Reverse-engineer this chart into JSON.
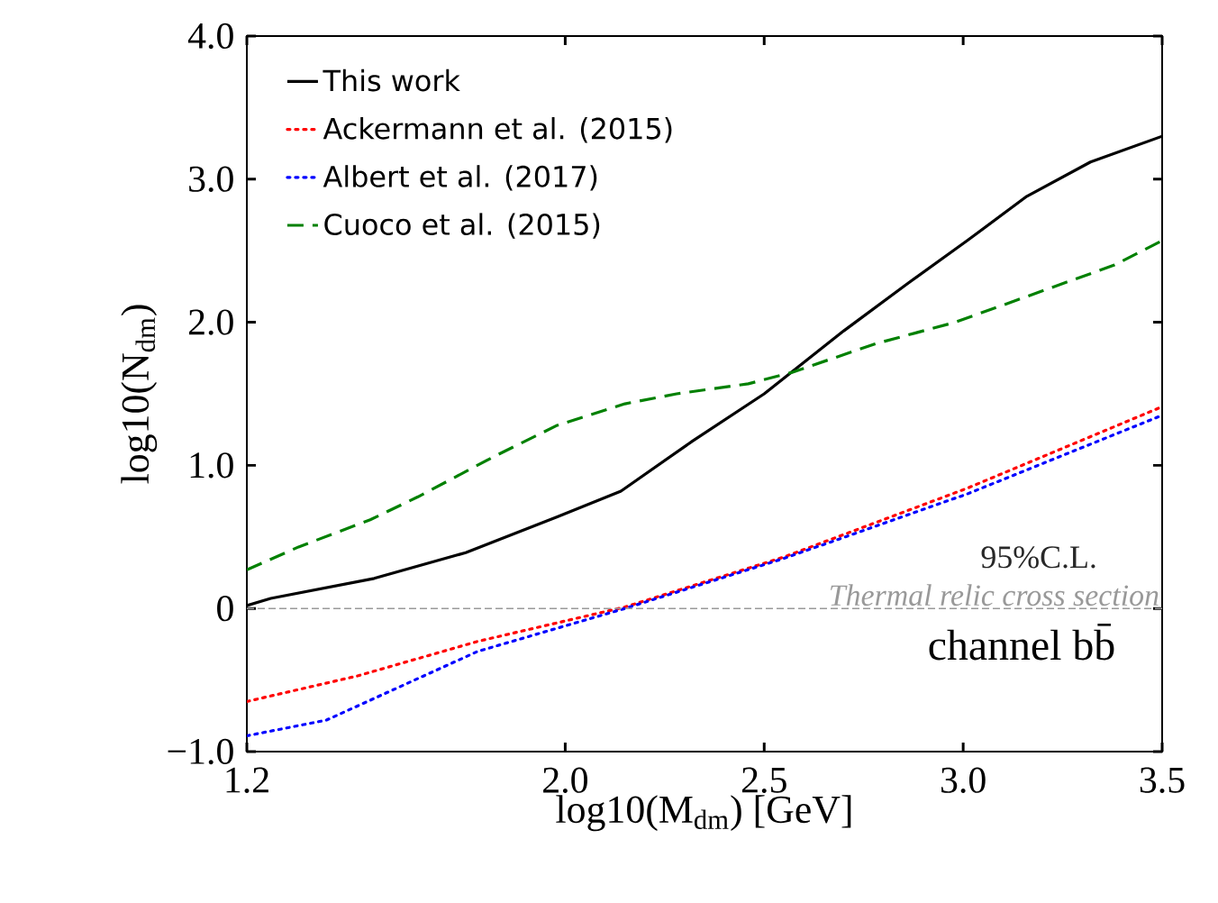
{
  "chart_data": {
    "type": "line",
    "xlabel": "log10(M$_{dm}$) [GeV]",
    "ylabel": "log10(N$_{dm}$)",
    "xlim": [
      1.2,
      3.5
    ],
    "ylim": [
      -1.0,
      4.0
    ],
    "xticks": [
      1.2,
      {
        "value": 2,
        "label": "2.0"
      },
      2.5,
      {
        "value": 3,
        "label": "3.0"
      },
      3.5
    ],
    "yticks": [
      {
        "value": -1,
        "label": "−1.0"
      },
      0,
      {
        "value": 1,
        "label": "1.0"
      },
      {
        "value": 2,
        "label": "2.0"
      },
      {
        "value": 3,
        "label": "3.0"
      },
      {
        "value": 4,
        "label": "4.0"
      }
    ],
    "legend": "top left",
    "grid": false,
    "marker": "none",
    "series": [
      {
        "name": "This work",
        "color": "#000000",
        "line_style": "solid",
        "x": [
          1.2,
          1.26,
          1.52,
          1.75,
          1.98,
          2.14,
          2.32,
          2.5,
          2.7,
          2.86,
          3.01,
          3.16,
          3.32,
          3.5
        ],
        "values": [
          0.02,
          0.07,
          0.21,
          0.39,
          0.64,
          0.82,
          1.17,
          1.5,
          1.94,
          2.27,
          2.57,
          2.88,
          3.12,
          3.3
        ]
      },
      {
        "name": "Ackermann et al. (2015)",
        "color": "#ff0000",
        "line_style": "dotted",
        "x": [
          1.2,
          1.48,
          1.78,
          2.15,
          2.55,
          3.01,
          3.5
        ],
        "values": [
          -0.65,
          -0.47,
          -0.23,
          0.01,
          0.36,
          0.84,
          1.41
        ]
      },
      {
        "name": "Albert et al. (2017)",
        "color": "#0000ff",
        "line_style": "dotted",
        "x": [
          1.2,
          1.4,
          1.78,
          2.15,
          2.55,
          3.01,
          3.5
        ],
        "values": [
          -0.89,
          -0.78,
          -0.3,
          0.0,
          0.35,
          0.8,
          1.35
        ]
      },
      {
        "name": "Cuoco et al. (2015)",
        "color": "#008000",
        "line_style": "dashed",
        "x": [
          1.2,
          1.33,
          1.51,
          1.63,
          1.82,
          1.98,
          2.15,
          2.28,
          2.46,
          2.57,
          2.78,
          2.98,
          3.16,
          3.38,
          3.5
        ],
        "values": [
          0.27,
          0.43,
          0.62,
          0.78,
          1.06,
          1.28,
          1.43,
          1.5,
          1.57,
          1.65,
          1.85,
          2.0,
          2.18,
          2.4,
          2.57
        ]
      }
    ],
    "ref_lines": [
      {
        "axis": "y",
        "value": 0,
        "label": "Thermal relic cross section",
        "color": "#999999",
        "line_style": "dashed"
      }
    ],
    "annotations": [
      "95%C.L.",
      "channel bb̄"
    ]
  }
}
